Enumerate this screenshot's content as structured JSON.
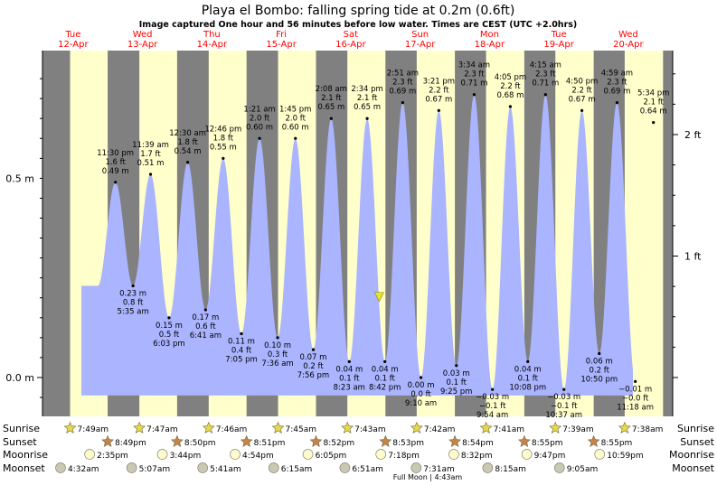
{
  "chart_data": {
    "type": "area",
    "title": "Playa el Bombo: falling  spring tide at 0.2m (0.6ft)",
    "subtitle": "Image captured One hour and 56 minutes before low water. Times are CEST (UTC +2.0hrs)",
    "days": [
      {
        "dow": "Tue",
        "date": "12-Apr"
      },
      {
        "dow": "Wed",
        "date": "13-Apr"
      },
      {
        "dow": "Thu",
        "date": "14-Apr"
      },
      {
        "dow": "Fri",
        "date": "15-Apr"
      },
      {
        "dow": "Sat",
        "date": "16-Apr"
      },
      {
        "dow": "Sun",
        "date": "17-Apr"
      },
      {
        "dow": "Mon",
        "date": "18-Apr"
      },
      {
        "dow": "Tue",
        "date": "19-Apr"
      },
      {
        "dow": "Wed",
        "date": "20-Apr"
      }
    ],
    "y_left_ticks": [
      {
        "value": 0.0,
        "label": "0.0 m"
      },
      {
        "value": 0.5,
        "label": "0.5 m"
      }
    ],
    "y_right_ticks": [
      {
        "value_ft": 1,
        "label": "1 ft"
      },
      {
        "value_ft": 2,
        "label": "2 ft"
      }
    ],
    "ylim_m": [
      -0.065,
      0.8
    ],
    "tides": [
      {
        "day": 0,
        "hour": 23.5,
        "m": 0.49,
        "type": "high",
        "labels": [
          "11:30 pm",
          "1.6 ft",
          "0.49 m"
        ]
      },
      {
        "day": 1,
        "hour": 5.58,
        "m": 0.23,
        "type": "low",
        "labels": [
          "0.23 m",
          "0.8 ft",
          "5:35 am"
        ]
      },
      {
        "day": 1,
        "hour": 11.65,
        "m": 0.51,
        "type": "high",
        "labels": [
          "11:39 am",
          "1.7 ft",
          "0.51 m"
        ]
      },
      {
        "day": 1,
        "hour": 18.05,
        "m": 0.15,
        "type": "low",
        "labels": [
          "0.15 m",
          "0.5 ft",
          "6:03 pm"
        ]
      },
      {
        "day": 2,
        "hour": 0.5,
        "m": 0.54,
        "type": "high",
        "labels": [
          "12:30 am",
          "1.8 ft",
          "0.54 m"
        ]
      },
      {
        "day": 2,
        "hour": 6.68,
        "m": 0.17,
        "type": "low",
        "labels": [
          "0.17 m",
          "0.6 ft",
          "6:41 am"
        ]
      },
      {
        "day": 2,
        "hour": 12.77,
        "m": 0.55,
        "type": "high",
        "labels": [
          "12:46 pm",
          "1.8 ft",
          "0.55 m"
        ]
      },
      {
        "day": 2,
        "hour": 19.08,
        "m": 0.11,
        "type": "low",
        "labels": [
          "0.11 m",
          "0.4 ft",
          "7:05 pm"
        ]
      },
      {
        "day": 3,
        "hour": 1.35,
        "m": 0.6,
        "type": "high",
        "labels": [
          "1:21 am",
          "2.0 ft",
          "0.60 m"
        ]
      },
      {
        "day": 3,
        "hour": 7.6,
        "m": 0.1,
        "type": "low",
        "labels": [
          "0.10 m",
          "0.3 ft",
          "7:36 am"
        ]
      },
      {
        "day": 3,
        "hour": 13.75,
        "m": 0.6,
        "type": "high",
        "labels": [
          "1:45 pm",
          "2.0 ft",
          "0.60 m"
        ]
      },
      {
        "day": 3,
        "hour": 19.93,
        "m": 0.07,
        "type": "low",
        "labels": [
          "0.07 m",
          "0.2 ft",
          "7:56 pm"
        ]
      },
      {
        "day": 4,
        "hour": 2.13,
        "m": 0.65,
        "type": "high",
        "labels": [
          "2:08 am",
          "2.1 ft",
          "0.65 m"
        ]
      },
      {
        "day": 4,
        "hour": 8.38,
        "m": 0.04,
        "type": "low",
        "labels": [
          "0.04 m",
          "0.1 ft",
          "8:23 am"
        ]
      },
      {
        "day": 4,
        "hour": 14.57,
        "m": 0.65,
        "type": "high",
        "labels": [
          "2:34 pm",
          "2.1 ft",
          "0.65 m"
        ]
      },
      {
        "day": 4,
        "hour": 20.7,
        "m": 0.04,
        "type": "low",
        "labels": [
          "0.04 m",
          "0.1 ft",
          "8:42 pm"
        ]
      },
      {
        "day": 5,
        "hour": 2.85,
        "m": 0.69,
        "type": "high",
        "labels": [
          "2:51 am",
          "2.3 ft",
          "0.69 m"
        ]
      },
      {
        "day": 5,
        "hour": 9.17,
        "m": 0.0,
        "type": "low",
        "labels": [
          "0.00 m",
          "0.0 ft",
          "9:10 am"
        ]
      },
      {
        "day": 5,
        "hour": 15.35,
        "m": 0.67,
        "type": "high",
        "labels": [
          "3:21 pm",
          "2.2 ft",
          "0.67 m"
        ]
      },
      {
        "day": 5,
        "hour": 21.42,
        "m": 0.03,
        "type": "low",
        "labels": [
          "0.03 m",
          "0.1 ft",
          "9:25 pm"
        ]
      },
      {
        "day": 6,
        "hour": 3.57,
        "m": 0.71,
        "type": "high",
        "labels": [
          "3:34 am",
          "2.3 ft",
          "0.71 m"
        ]
      },
      {
        "day": 6,
        "hour": 9.9,
        "m": -0.03,
        "type": "low",
        "labels": [
          "−0.03 m",
          "−0.1 ft",
          "9:54 am"
        ]
      },
      {
        "day": 6,
        "hour": 16.08,
        "m": 0.68,
        "type": "high",
        "labels": [
          "4:05 pm",
          "2.2 ft",
          "0.68 m"
        ]
      },
      {
        "day": 6,
        "hour": 22.13,
        "m": 0.04,
        "type": "low",
        "labels": [
          "0.04 m",
          "0.1 ft",
          "10:08 pm"
        ]
      },
      {
        "day": 7,
        "hour": 4.25,
        "m": 0.71,
        "type": "high",
        "labels": [
          "4:15 am",
          "2.3 ft",
          "0.71 m"
        ]
      },
      {
        "day": 7,
        "hour": 10.62,
        "m": -0.03,
        "type": "low",
        "labels": [
          "−0.03 m",
          "−0.1 ft",
          "10:37 am"
        ]
      },
      {
        "day": 7,
        "hour": 16.83,
        "m": 0.67,
        "type": "high",
        "labels": [
          "4:50 pm",
          "2.2 ft",
          "0.67 m"
        ]
      },
      {
        "day": 7,
        "hour": 22.83,
        "m": 0.06,
        "type": "low",
        "labels": [
          "0.06 m",
          "0.2 ft",
          "10:50 pm"
        ]
      },
      {
        "day": 8,
        "hour": 4.98,
        "m": 0.69,
        "type": "high",
        "labels": [
          "4:59 am",
          "2.3 ft",
          "0.69 m"
        ]
      },
      {
        "day": 8,
        "hour": 11.3,
        "m": -0.01,
        "type": "low",
        "labels": [
          "−0.01 m",
          "−0.0 ft",
          "11:18 am"
        ]
      },
      {
        "day": 8,
        "hour": 17.57,
        "m": 0.64,
        "type": "high",
        "labels": [
          "5:34 pm",
          "2.1 ft",
          "0.64 m"
        ]
      }
    ],
    "current_level": {
      "day": 4,
      "hour": 18.75,
      "m": 0.2
    },
    "sunrise": [
      "7:49am",
      "7:47am",
      "7:46am",
      "7:45am",
      "7:43am",
      "7:42am",
      "7:41am",
      "7:39am",
      "7:38am"
    ],
    "sunset": [
      "8:49pm",
      "8:50pm",
      "8:51pm",
      "8:52pm",
      "8:53pm",
      "8:54pm",
      "8:55pm",
      "8:55pm"
    ],
    "moonrise": [
      "2:35pm",
      "3:44pm",
      "4:54pm",
      "6:05pm",
      "7:18pm",
      "8:32pm",
      "9:47pm",
      "10:59pm"
    ],
    "moonset": [
      "4:32am",
      "5:07am",
      "5:41am",
      "6:15am",
      "6:51am",
      "7:31am",
      "8:15am",
      "9:05am"
    ],
    "row_labels": {
      "sunrise": "Sunrise",
      "sunset": "Sunset",
      "moonrise": "Moonrise",
      "moonset": "Moonset"
    },
    "full_moon_note": "Full Moon | 4:43am",
    "colors": {
      "day_bg": "#ffffcc",
      "night_bg": "#808080",
      "tide_fill": "#aab4ff",
      "date_text": "#ff0000",
      "sun_icon": "#e8d84a",
      "sunset_icon": "#c8824a",
      "moon_icon": "#fffbd0",
      "moonset_icon": "#c8c8b4"
    }
  }
}
